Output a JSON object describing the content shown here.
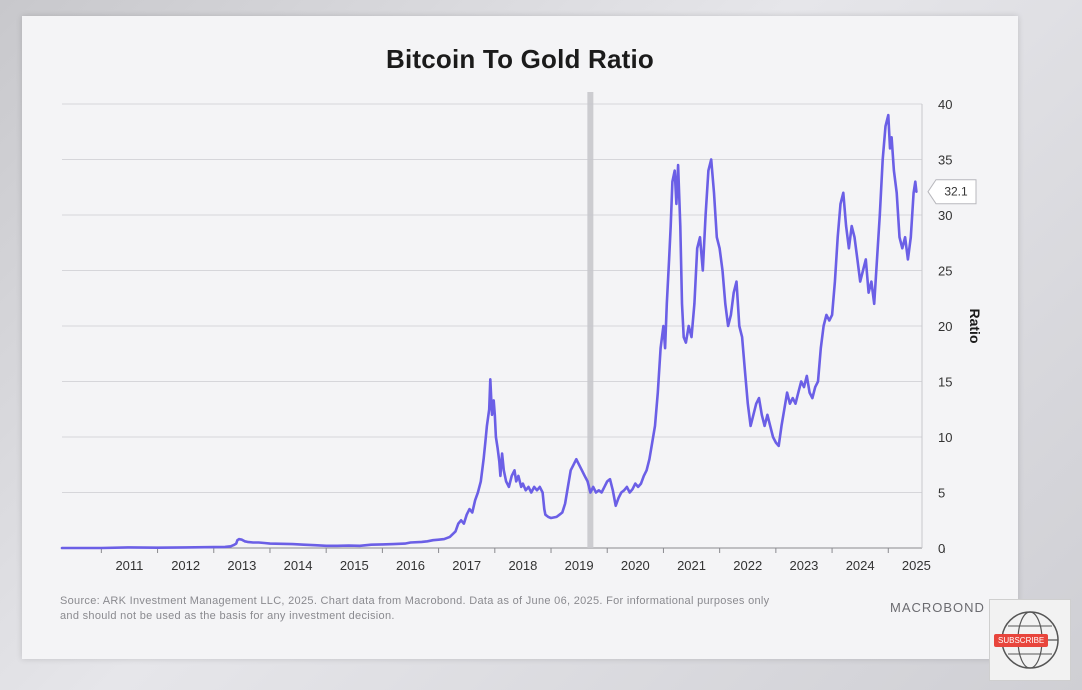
{
  "chart_data": {
    "type": "line",
    "title": "Bitcoin To Gold Ratio",
    "ylabel": "Ratio",
    "xlabel": "",
    "ylim": [
      0,
      40
    ],
    "xlim": [
      2010.3,
      2025.6
    ],
    "y_ticks": [
      "0",
      "5",
      "10",
      "15",
      "20",
      "25",
      "30",
      "35",
      "40"
    ],
    "x_ticks": [
      "2011",
      "2012",
      "2013",
      "2014",
      "2015",
      "2016",
      "2017",
      "2018",
      "2019",
      "2020",
      "2021",
      "2022",
      "2023",
      "2024",
      "2025"
    ],
    "grid": "horizontal",
    "line_color": "#6b5fe6",
    "vertical_marker": {
      "x": 2019.7,
      "color": "#c8c8cc"
    },
    "last_value_label": "32.1",
    "series": [
      {
        "points": [
          [
            2010.3,
            0.0
          ],
          [
            2011.0,
            0.0
          ],
          [
            2011.5,
            0.05
          ],
          [
            2012.0,
            0.03
          ],
          [
            2012.5,
            0.05
          ],
          [
            2013.0,
            0.08
          ],
          [
            2013.2,
            0.1
          ],
          [
            2013.3,
            0.15
          ],
          [
            2013.35,
            0.25
          ],
          [
            2013.4,
            0.4
          ],
          [
            2013.42,
            0.7
          ],
          [
            2013.45,
            0.8
          ],
          [
            2013.5,
            0.75
          ],
          [
            2013.55,
            0.6
          ],
          [
            2013.6,
            0.55
          ],
          [
            2013.7,
            0.5
          ],
          [
            2013.8,
            0.5
          ],
          [
            2013.9,
            0.45
          ],
          [
            2014.0,
            0.4
          ],
          [
            2014.2,
            0.38
          ],
          [
            2014.4,
            0.35
          ],
          [
            2014.6,
            0.3
          ],
          [
            2014.8,
            0.25
          ],
          [
            2015.0,
            0.2
          ],
          [
            2015.2,
            0.2
          ],
          [
            2015.4,
            0.22
          ],
          [
            2015.6,
            0.2
          ],
          [
            2015.8,
            0.3
          ],
          [
            2016.0,
            0.32
          ],
          [
            2016.2,
            0.35
          ],
          [
            2016.4,
            0.4
          ],
          [
            2016.5,
            0.5
          ],
          [
            2016.7,
            0.55
          ],
          [
            2016.8,
            0.6
          ],
          [
            2016.9,
            0.7
          ],
          [
            2017.0,
            0.75
          ],
          [
            2017.1,
            0.8
          ],
          [
            2017.2,
            1.0
          ],
          [
            2017.3,
            1.5
          ],
          [
            2017.35,
            2.2
          ],
          [
            2017.4,
            2.5
          ],
          [
            2017.45,
            2.2
          ],
          [
            2017.5,
            3.0
          ],
          [
            2017.55,
            3.5
          ],
          [
            2017.6,
            3.2
          ],
          [
            2017.65,
            4.3
          ],
          [
            2017.7,
            5.0
          ],
          [
            2017.75,
            6.0
          ],
          [
            2017.8,
            8.0
          ],
          [
            2017.83,
            9.5
          ],
          [
            2017.86,
            11.0
          ],
          [
            2017.9,
            12.5
          ],
          [
            2017.92,
            15.2
          ],
          [
            2017.95,
            12.0
          ],
          [
            2017.98,
            13.3
          ],
          [
            2018.0,
            12.0
          ],
          [
            2018.02,
            10.0
          ],
          [
            2018.05,
            9.0
          ],
          [
            2018.08,
            7.8
          ],
          [
            2018.1,
            6.5
          ],
          [
            2018.13,
            8.5
          ],
          [
            2018.16,
            7.0
          ],
          [
            2018.2,
            6.0
          ],
          [
            2018.25,
            5.5
          ],
          [
            2018.3,
            6.5
          ],
          [
            2018.35,
            7.0
          ],
          [
            2018.38,
            6.0
          ],
          [
            2018.42,
            6.5
          ],
          [
            2018.47,
            5.5
          ],
          [
            2018.5,
            5.8
          ],
          [
            2018.55,
            5.2
          ],
          [
            2018.6,
            5.5
          ],
          [
            2018.65,
            5.0
          ],
          [
            2018.7,
            5.5
          ],
          [
            2018.75,
            5.2
          ],
          [
            2018.8,
            5.5
          ],
          [
            2018.85,
            5.0
          ],
          [
            2018.88,
            3.5
          ],
          [
            2018.9,
            3.0
          ],
          [
            2018.95,
            2.8
          ],
          [
            2019.0,
            2.7
          ],
          [
            2019.1,
            2.8
          ],
          [
            2019.15,
            3.0
          ],
          [
            2019.2,
            3.2
          ],
          [
            2019.25,
            4.0
          ],
          [
            2019.3,
            5.5
          ],
          [
            2019.35,
            7.0
          ],
          [
            2019.4,
            7.5
          ],
          [
            2019.45,
            8.0
          ],
          [
            2019.5,
            7.5
          ],
          [
            2019.55,
            7.0
          ],
          [
            2019.6,
            6.5
          ],
          [
            2019.65,
            6.0
          ],
          [
            2019.7,
            5.0
          ],
          [
            2019.75,
            5.5
          ],
          [
            2019.8,
            5.0
          ],
          [
            2019.85,
            5.2
          ],
          [
            2019.9,
            5.0
          ],
          [
            2019.95,
            5.5
          ],
          [
            2020.0,
            6.0
          ],
          [
            2020.05,
            6.2
          ],
          [
            2020.1,
            5.2
          ],
          [
            2020.15,
            3.8
          ],
          [
            2020.2,
            4.5
          ],
          [
            2020.25,
            5.0
          ],
          [
            2020.3,
            5.2
          ],
          [
            2020.35,
            5.5
          ],
          [
            2020.4,
            5.0
          ],
          [
            2020.45,
            5.3
          ],
          [
            2020.5,
            5.8
          ],
          [
            2020.55,
            5.5
          ],
          [
            2020.6,
            5.8
          ],
          [
            2020.65,
            6.5
          ],
          [
            2020.7,
            7.0
          ],
          [
            2020.75,
            8.0
          ],
          [
            2020.8,
            9.5
          ],
          [
            2020.85,
            11.0
          ],
          [
            2020.9,
            14.0
          ],
          [
            2020.95,
            18.0
          ],
          [
            2021.0,
            20.0
          ],
          [
            2021.03,
            18.0
          ],
          [
            2021.06,
            22.0
          ],
          [
            2021.1,
            26.0
          ],
          [
            2021.13,
            29.0
          ],
          [
            2021.16,
            33.0
          ],
          [
            2021.2,
            34.0
          ],
          [
            2021.23,
            31.0
          ],
          [
            2021.26,
            34.5
          ],
          [
            2021.3,
            29.0
          ],
          [
            2021.33,
            22.0
          ],
          [
            2021.36,
            19.0
          ],
          [
            2021.4,
            18.5
          ],
          [
            2021.45,
            20.0
          ],
          [
            2021.5,
            19.0
          ],
          [
            2021.55,
            22.0
          ],
          [
            2021.6,
            27.0
          ],
          [
            2021.65,
            28.0
          ],
          [
            2021.7,
            25.0
          ],
          [
            2021.75,
            30.0
          ],
          [
            2021.8,
            34.0
          ],
          [
            2021.85,
            35.0
          ],
          [
            2021.9,
            32.0
          ],
          [
            2021.95,
            28.0
          ],
          [
            2022.0,
            27.0
          ],
          [
            2022.05,
            25.0
          ],
          [
            2022.1,
            22.0
          ],
          [
            2022.15,
            20.0
          ],
          [
            2022.2,
            21.0
          ],
          [
            2022.25,
            23.0
          ],
          [
            2022.3,
            24.0
          ],
          [
            2022.35,
            20.0
          ],
          [
            2022.4,
            19.0
          ],
          [
            2022.45,
            16.0
          ],
          [
            2022.5,
            13.0
          ],
          [
            2022.55,
            11.0
          ],
          [
            2022.6,
            12.0
          ],
          [
            2022.65,
            13.0
          ],
          [
            2022.7,
            13.5
          ],
          [
            2022.75,
            12.0
          ],
          [
            2022.8,
            11.0
          ],
          [
            2022.85,
            12.0
          ],
          [
            2022.9,
            11.0
          ],
          [
            2022.95,
            10.0
          ],
          [
            2023.0,
            9.5
          ],
          [
            2023.05,
            9.2
          ],
          [
            2023.1,
            11.0
          ],
          [
            2023.15,
            12.5
          ],
          [
            2023.2,
            14.0
          ],
          [
            2023.25,
            13.0
          ],
          [
            2023.3,
            13.5
          ],
          [
            2023.35,
            13.0
          ],
          [
            2023.4,
            14.0
          ],
          [
            2023.45,
            15.0
          ],
          [
            2023.5,
            14.5
          ],
          [
            2023.55,
            15.5
          ],
          [
            2023.6,
            14.0
          ],
          [
            2023.65,
            13.5
          ],
          [
            2023.7,
            14.5
          ],
          [
            2023.75,
            15.0
          ],
          [
            2023.8,
            18.0
          ],
          [
            2023.85,
            20.0
          ],
          [
            2023.9,
            21.0
          ],
          [
            2023.95,
            20.5
          ],
          [
            2024.0,
            21.0
          ],
          [
            2024.05,
            24.0
          ],
          [
            2024.1,
            28.0
          ],
          [
            2024.15,
            31.0
          ],
          [
            2024.2,
            32.0
          ],
          [
            2024.25,
            29.0
          ],
          [
            2024.3,
            27.0
          ],
          [
            2024.35,
            29.0
          ],
          [
            2024.4,
            28.0
          ],
          [
            2024.45,
            26.0
          ],
          [
            2024.5,
            24.0
          ],
          [
            2024.55,
            25.0
          ],
          [
            2024.6,
            26.0
          ],
          [
            2024.65,
            23.0
          ],
          [
            2024.7,
            24.0
          ],
          [
            2024.75,
            22.0
          ],
          [
            2024.8,
            26.0
          ],
          [
            2024.85,
            30.0
          ],
          [
            2024.9,
            35.0
          ],
          [
            2024.95,
            38.0
          ],
          [
            2025.0,
            39.0
          ],
          [
            2025.03,
            36.0
          ],
          [
            2025.06,
            37.0
          ],
          [
            2025.1,
            34.0
          ],
          [
            2025.15,
            32.0
          ],
          [
            2025.2,
            28.0
          ],
          [
            2025.25,
            27.0
          ],
          [
            2025.3,
            28.0
          ],
          [
            2025.35,
            26.0
          ],
          [
            2025.4,
            28.0
          ],
          [
            2025.45,
            32.0
          ],
          [
            2025.48,
            33.0
          ],
          [
            2025.5,
            32.1
          ]
        ]
      }
    ]
  },
  "footer": {
    "source_line_1": "Source: ARK Investment Management LLC, 2025. Chart data from Macrobond. Data as of June 06, 2025. For informational purposes only",
    "source_line_2": "and should not be used as the basis for any investment decision.",
    "brand": "MACROBOND"
  },
  "overlay": {
    "subscribe_label": "SUBSCRIBE"
  }
}
